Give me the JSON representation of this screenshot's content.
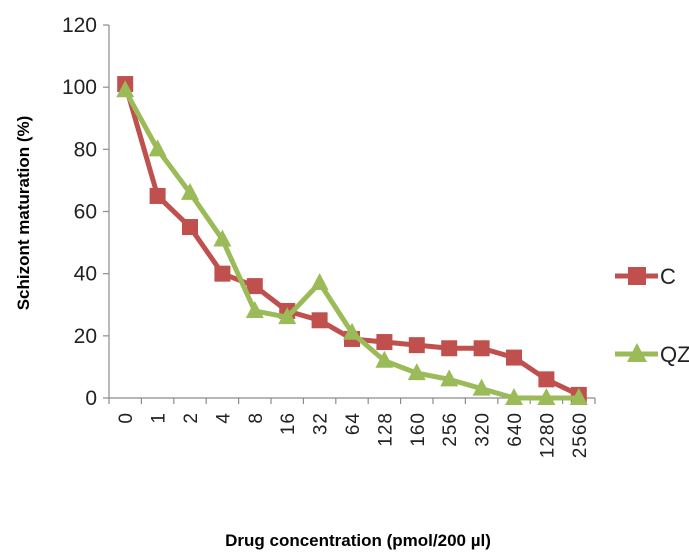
{
  "chart_data": {
    "type": "line",
    "xlabel": "Drug concentration (pmol/200 µl)",
    "ylabel": "Schizont maturation (%)",
    "ylim": [
      0,
      120
    ],
    "yticks": [
      0,
      20,
      40,
      60,
      80,
      100,
      120
    ],
    "grid": false,
    "legend_position": "right",
    "categories": [
      "0",
      "1",
      "2",
      "4",
      "8",
      "16",
      "32",
      "64",
      "128",
      "160",
      "256",
      "320",
      "640",
      "1280",
      "2560"
    ],
    "series": [
      {
        "name": "C",
        "color": "#c0504d",
        "marker": "square",
        "values": [
          101,
          65,
          55,
          40,
          36,
          28,
          25,
          19,
          18,
          17,
          16,
          16,
          13,
          6,
          1
        ]
      },
      {
        "name": "QZ",
        "color": "#9bbb59",
        "marker": "triangle",
        "values": [
          99,
          80,
          66,
          51,
          28,
          26,
          37,
          21,
          12,
          8,
          6,
          3,
          0,
          0,
          0
        ]
      }
    ]
  }
}
